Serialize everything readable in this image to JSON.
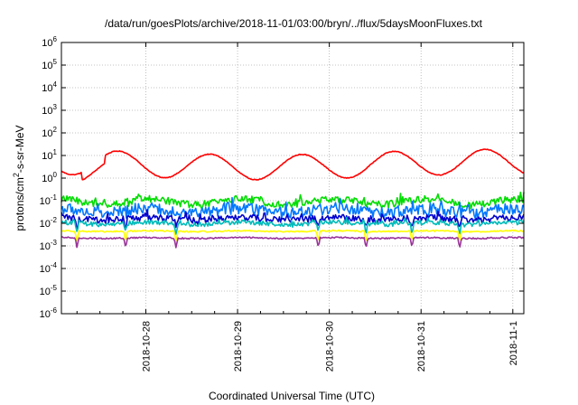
{
  "chart_data": {
    "type": "line",
    "title": "/data/run/goesPlots/archive/2018-11-01/03:00/bryn/../flux/5daysMoonFluxes.txt",
    "xlabel": "Coordinated Universal Time (UTC)",
    "ylabel": "protons/cm2-s-sr-MeV",
    "ylabel_parts": {
      "a": "protons/cm",
      "sup": "2",
      "b": "-s-sr-MeV"
    },
    "yscale": "log",
    "ylim_exp": [
      -6,
      6
    ],
    "y_tick_labels": [
      {
        "base": "10",
        "exp": "-6"
      },
      {
        "base": "10",
        "exp": "-5"
      },
      {
        "base": "10",
        "exp": "-4"
      },
      {
        "base": "10",
        "exp": "-3"
      },
      {
        "base": "10",
        "exp": "-2"
      },
      {
        "base": "10",
        "exp": "-1"
      },
      {
        "base": "10",
        "exp": "0"
      },
      {
        "base": "10",
        "exp": "1"
      },
      {
        "base": "10",
        "exp": "2"
      },
      {
        "base": "10",
        "exp": "3"
      },
      {
        "base": "10",
        "exp": "4"
      },
      {
        "base": "10",
        "exp": "5"
      },
      {
        "base": "10",
        "exp": "6"
      }
    ],
    "xlim_days": [
      -4.92,
      0.12
    ],
    "x_ticks": [
      {
        "label": "2018-10-28",
        "day": -4
      },
      {
        "label": "2018-10-29",
        "day": -3
      },
      {
        "label": "2018-10-30",
        "day": -2
      },
      {
        "label": "2018-10-31",
        "day": -1
      },
      {
        "label": "2018-11-1",
        "day": 0
      }
    ],
    "grid": true,
    "series": [
      {
        "color": "#ff0000",
        "level": 0.6,
        "style": "diurnal",
        "amp": 0.55,
        "noise": 0.03,
        "dips": false
      },
      {
        "color": "#00dd00",
        "level": -1.05,
        "style": "noisy",
        "amp": 0.12,
        "noise": 0.16,
        "dips": false
      },
      {
        "color": "#0077ff",
        "level": -1.45,
        "style": "noisy",
        "amp": 0.1,
        "noise": 0.25,
        "dips": false
      },
      {
        "color": "#0000cc",
        "level": -1.8,
        "style": "noisy",
        "amp": 0.06,
        "noise": 0.14,
        "dips": true
      },
      {
        "color": "#00bbbb",
        "level": -2.0,
        "style": "noisy",
        "amp": 0.05,
        "noise": 0.1,
        "dips": true
      },
      {
        "color": "#ffff00",
        "level": -2.35,
        "style": "flat",
        "amp": 0.02,
        "noise": 0.03,
        "dips": true
      },
      {
        "color": "#993399",
        "level": -2.65,
        "style": "flat",
        "amp": 0.02,
        "noise": 0.03,
        "dips": true
      }
    ],
    "dip_days": [
      -4.75,
      -4.22,
      -3.67,
      -2.12,
      -1.6,
      -1.1,
      -0.58
    ]
  }
}
